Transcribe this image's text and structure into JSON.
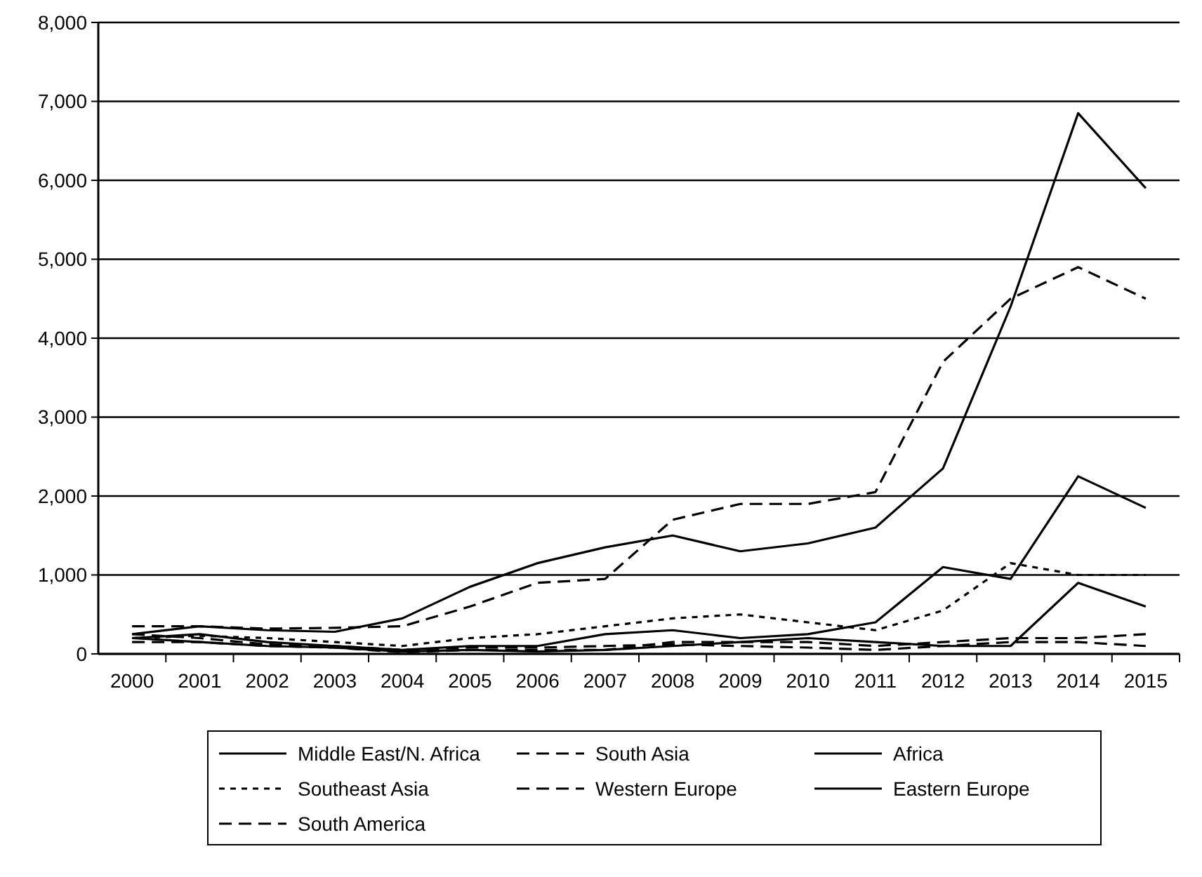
{
  "chart_data": {
    "type": "line",
    "categories": [
      "2000",
      "2001",
      "2002",
      "2003",
      "2004",
      "2005",
      "2006",
      "2007",
      "2008",
      "2009",
      "2010",
      "2011",
      "2012",
      "2013",
      "2014",
      "2015"
    ],
    "ylim": [
      0,
      8000
    ],
    "yticks": [
      {
        "value": 0,
        "label": "0"
      },
      {
        "value": 1000,
        "label": "1,000"
      },
      {
        "value": 2000,
        "label": "2,000"
      },
      {
        "value": 3000,
        "label": "3,000"
      },
      {
        "value": 4000,
        "label": "4,000"
      },
      {
        "value": 5000,
        "label": "5,000"
      },
      {
        "value": 6000,
        "label": "6,000"
      },
      {
        "value": 7000,
        "label": "7,000"
      },
      {
        "value": 8000,
        "label": "8,000"
      }
    ],
    "grid": "y",
    "legend": "bottom",
    "marker": "none",
    "series": [
      {
        "name": "Middle East/N. Africa",
        "color": "#000000",
        "line_style": "solid",
        "values": [
          250,
          350,
          300,
          280,
          450,
          850,
          1150,
          1350,
          1500,
          1300,
          1400,
          1600,
          2350,
          4400,
          6850,
          5900
        ]
      },
      {
        "name": "South Asia",
        "color": "#000000",
        "line_style": "dashed",
        "values": [
          350,
          350,
          320,
          330,
          350,
          600,
          900,
          950,
          1700,
          1900,
          1900,
          2050,
          3700,
          4500,
          4900,
          4500
        ]
      },
      {
        "name": "Africa",
        "color": "#000000",
        "line_style": "solid",
        "values": [
          200,
          250,
          150,
          100,
          50,
          100,
          100,
          250,
          300,
          200,
          250,
          400,
          1100,
          950,
          2250,
          1850
        ]
      },
      {
        "name": "Southeast Asia",
        "color": "#000000",
        "line_style": "dotted",
        "values": [
          200,
          230,
          200,
          150,
          100,
          200,
          250,
          350,
          450,
          500,
          400,
          300,
          550,
          1150,
          1000,
          1000
        ]
      },
      {
        "name": "Western Europe",
        "color": "#000000",
        "line_style": "dashed",
        "values": [
          150,
          150,
          100,
          80,
          20,
          50,
          50,
          50,
          150,
          150,
          150,
          100,
          150,
          200,
          200,
          250
        ]
      },
      {
        "name": "Eastern Europe",
        "color": "#000000",
        "line_style": "solid",
        "values": [
          200,
          150,
          100,
          80,
          30,
          50,
          30,
          50,
          100,
          150,
          200,
          150,
          100,
          100,
          900,
          600
        ]
      },
      {
        "name": "South America",
        "color": "#000000",
        "line_style": "dashed",
        "values": [
          250,
          200,
          120,
          100,
          50,
          80,
          80,
          100,
          120,
          100,
          80,
          50,
          100,
          150,
          150,
          100
        ]
      }
    ]
  }
}
